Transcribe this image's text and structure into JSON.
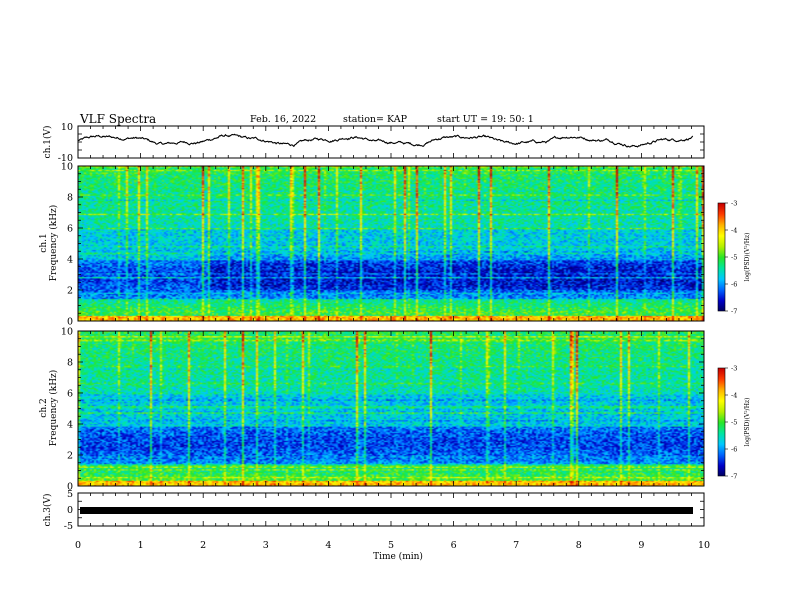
{
  "header": {
    "title": "VLF Spectra",
    "date": "Feb. 16, 2022",
    "station": "station= KAP",
    "start": "start  UT =   19: 50: 1"
  },
  "chart_data": [
    {
      "type": "line",
      "panel": "ch1-waveform",
      "ylabel": "ch.1(V)",
      "ylim": [
        -10,
        10
      ],
      "yticks": [
        "10",
        "-10"
      ],
      "x_range_min": [
        0,
        9.82
      ],
      "series_envelope_V": {
        "min": -4,
        "max": 6
      }
    },
    {
      "type": "heatmap",
      "panel": "ch1-spectrogram",
      "ylabel": "ch.1\nFrequency  (kHz)",
      "ylim": [
        0,
        10
      ],
      "yticks": [
        "0",
        "2",
        "4",
        "6",
        "8",
        "10"
      ],
      "x_range_min": [
        0,
        9.82
      ],
      "colorbar": {
        "label": "log(PSD)(V²/Hz)",
        "range": [
          -7,
          -3
        ],
        "ticks": [
          "-3",
          "-4",
          "-5",
          "-6",
          "-7"
        ]
      }
    },
    {
      "type": "heatmap",
      "panel": "ch2-spectrogram",
      "ylabel": "ch.2\nFrequency  (kHz)",
      "ylim": [
        0,
        10
      ],
      "yticks": [
        "0",
        "2",
        "4",
        "6",
        "8",
        "10"
      ],
      "x_range_min": [
        0,
        9.82
      ],
      "colorbar": {
        "label": "log(PSD)(V²/Hz)",
        "range": [
          -7,
          -3
        ],
        "ticks": [
          "-3",
          "-4",
          "-5",
          "-6",
          "-7"
        ]
      }
    },
    {
      "type": "line",
      "panel": "ch3-waveform",
      "ylabel": "ch.3(V)",
      "ylim": [
        -5,
        5
      ],
      "yticks": [
        "5",
        "0",
        "-5"
      ],
      "x_range_min": [
        0,
        9.82
      ],
      "series_envelope_V": {
        "min": -0.5,
        "max": 0.5
      }
    }
  ],
  "xaxis": {
    "label": "Time  (min)",
    "ticks": [
      "0",
      "1",
      "2",
      "3",
      "4",
      "5",
      "6",
      "7",
      "8",
      "9",
      "10"
    ]
  },
  "colors": {
    "colormap": [
      "#00005a",
      "#0000c8",
      "#0064ff",
      "#00c8ff",
      "#00e6a0",
      "#28e628",
      "#b4f000",
      "#ffff00",
      "#ffb400",
      "#ff3c00",
      "#c80000",
      "#ffffff"
    ]
  }
}
